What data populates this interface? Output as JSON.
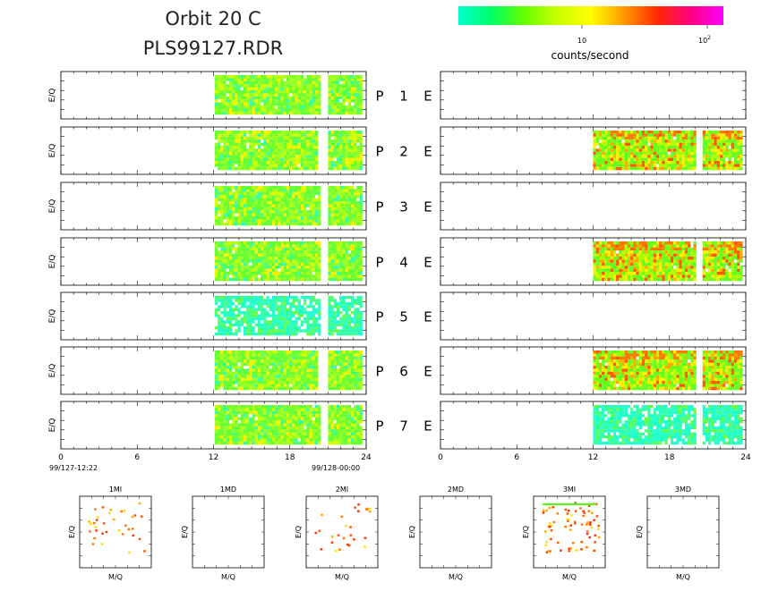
{
  "header": {
    "title": "Orbit 20 C",
    "subtitle": "PLS99127.RDR"
  },
  "colorbar": {
    "colors": [
      "#00ffd0",
      "#00ff66",
      "#66ff00",
      "#ccff00",
      "#ffff00",
      "#ff9900",
      "#ff2a00",
      "#ff0080",
      "#ff00ff"
    ],
    "tick_10": "10",
    "tick_100_base": "10",
    "tick_100_exp": "2",
    "label": "counts/second"
  },
  "panels": {
    "ylabel": "E/Q",
    "row_labels": [
      {
        "p": "P",
        "n": "1",
        "e": "E"
      },
      {
        "p": "P",
        "n": "2",
        "e": "E"
      },
      {
        "p": "P",
        "n": "3",
        "e": "E"
      },
      {
        "p": "P",
        "n": "4",
        "e": "E"
      },
      {
        "p": "P",
        "n": "5",
        "e": "E"
      },
      {
        "p": "P",
        "n": "6",
        "e": "E"
      },
      {
        "p": "P",
        "n": "7",
        "e": "E"
      }
    ],
    "x_ticks": [
      "0",
      "6",
      "12",
      "18",
      "24"
    ],
    "start_time": "99/127-12:22",
    "end_time": "99/128-00:00"
  },
  "chart_data": {
    "type": "heatmap",
    "x_unit": "hours",
    "xlim": [
      0,
      24
    ],
    "color_scale": "log",
    "color_range": [
      1,
      130
    ],
    "left_column": [
      {
        "panel": "P 1",
        "segments": [
          [
            12.1,
            20.4
          ],
          [
            21.0,
            23.8
          ]
        ],
        "level": "medium"
      },
      {
        "panel": "P 2",
        "segments": [
          [
            12.1,
            20.2
          ],
          [
            21.0,
            23.8
          ]
        ],
        "level": "medium"
      },
      {
        "panel": "P 3",
        "segments": [
          [
            12.1,
            20.4
          ],
          [
            21.0,
            23.8
          ]
        ],
        "level": "medium"
      },
      {
        "panel": "P 4",
        "segments": [
          [
            12.1,
            20.4
          ],
          [
            21.0,
            23.8
          ]
        ],
        "level": "medium"
      },
      {
        "panel": "P 5",
        "segments": [
          [
            12.1,
            20.4
          ],
          [
            21.0,
            23.8
          ]
        ],
        "level": "low"
      },
      {
        "panel": "P 6",
        "segments": [
          [
            12.1,
            20.2
          ],
          [
            21.0,
            23.8
          ]
        ],
        "level": "medium"
      },
      {
        "panel": "P 7",
        "segments": [
          [
            12.1,
            20.4
          ],
          [
            21.0,
            23.8
          ]
        ],
        "level": "medium"
      }
    ],
    "right_column": [
      {
        "panel": "E 1",
        "segments": [],
        "level": "none"
      },
      {
        "panel": "E 2",
        "segments": [
          [
            12.0,
            20.2
          ],
          [
            20.6,
            23.8
          ]
        ],
        "level": "high"
      },
      {
        "panel": "E 3",
        "segments": [],
        "level": "none"
      },
      {
        "panel": "E 4",
        "segments": [
          [
            12.0,
            20.2
          ],
          [
            20.6,
            23.8
          ]
        ],
        "level": "high"
      },
      {
        "panel": "E 5",
        "segments": [],
        "level": "none"
      },
      {
        "panel": "E 6",
        "segments": [
          [
            12.0,
            20.2
          ],
          [
            20.6,
            23.8
          ]
        ],
        "level": "high"
      },
      {
        "panel": "E 7",
        "segments": [
          [
            12.0,
            20.2
          ],
          [
            20.6,
            23.8
          ]
        ],
        "level": "low"
      }
    ]
  },
  "mass_panels": {
    "xlabel": "M/Q",
    "ylabel": "E/Q",
    "titles": [
      "1MI",
      "1MD",
      "2MI",
      "2MD",
      "3MI",
      "3MD"
    ]
  }
}
